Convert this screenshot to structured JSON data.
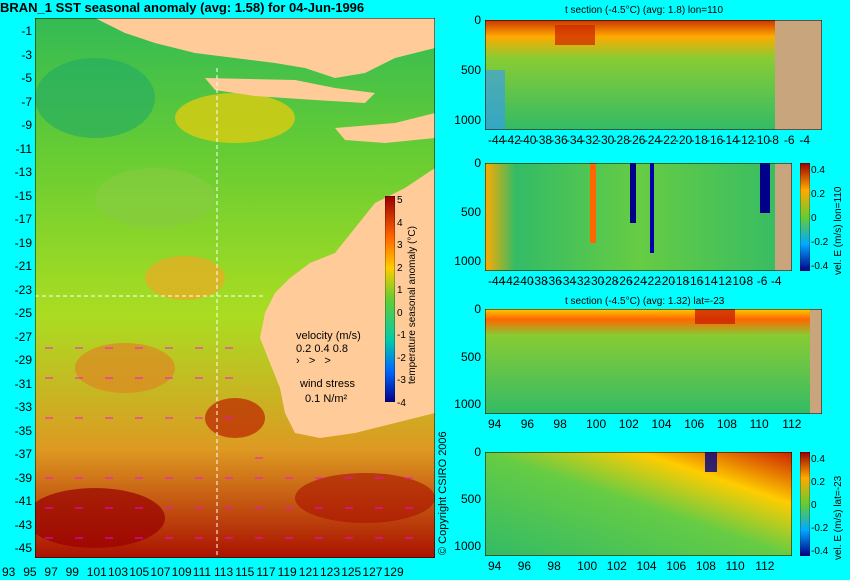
{
  "main_map": {
    "title": "BRAN_1 SST seasonal anomaly (avg: 1.58) for 04-Jun-1996",
    "y_ticks": [
      "-1",
      "-3",
      "-5",
      "-7",
      "-9",
      "-11",
      "-13",
      "-15",
      "-17",
      "-19",
      "-21",
      "-23",
      "-25",
      "-27",
      "-29",
      "-31",
      "-33",
      "-35",
      "-37",
      "-39",
      "-41",
      "-43",
      "-45"
    ],
    "x_ticks": [
      "93",
      "95",
      "97",
      "99",
      "101",
      "103",
      "105",
      "107",
      "109",
      "111",
      "113",
      "115",
      "117",
      "119",
      "121",
      "123",
      "125",
      "127",
      "129"
    ],
    "colorbar": {
      "ticks": [
        "5",
        "4",
        "3",
        "2",
        "1",
        "0",
        "-1",
        "-2",
        "-3",
        "-4"
      ],
      "label": "temperature seasonal anomaly (°C)"
    },
    "legend": {
      "velocity_label": "velocity (m/s)",
      "velocity_scale": "0.2 0.4 0.8",
      "wind_label": "wind stress",
      "wind_scale": "0.1 N/m²"
    },
    "copyright": "© Copyright CSIRO 2006"
  },
  "sections": [
    {
      "title": "t section (-4.5°C) (avg: 1.8) lon=110",
      "y_ticks": [
        "0",
        "500",
        "1000"
      ],
      "x_ticks": [
        "-44",
        "-42",
        "-40",
        "-38",
        "-36",
        "-34",
        "-32",
        "-30",
        "-28",
        "-26",
        "-24",
        "-22",
        "-20",
        "-18",
        "-16",
        "-14",
        "-12",
        "-10",
        "-8",
        "-6",
        "-4"
      ]
    },
    {
      "title": "",
      "y_ticks": [
        "0",
        "500",
        "1000"
      ],
      "x_ticks": [
        "-44",
        "-42",
        "-40",
        "-38",
        "-36",
        "-34",
        "-32",
        "-30",
        "-28",
        "-26",
        "-24",
        "-22",
        "-20",
        "-18",
        "-16",
        "-14",
        "-12",
        "-10",
        "-8",
        "-6",
        "-4"
      ],
      "colorbar_ticks": [
        "0.4",
        "0.2",
        "0",
        "-0.2",
        "-0.4"
      ],
      "colorbar_label": "vel. E (m/s) lon=110"
    },
    {
      "title": "t section (-4.5°C) (avg: 1.32) lat=-23",
      "y_ticks": [
        "0",
        "500",
        "1000"
      ],
      "x_ticks": [
        "94",
        "96",
        "98",
        "100",
        "102",
        "104",
        "106",
        "108",
        "110",
        "112"
      ]
    },
    {
      "title": "",
      "y_ticks": [
        "0",
        "500",
        "1000"
      ],
      "x_ticks": [
        "94",
        "96",
        "98",
        "100",
        "102",
        "104",
        "106",
        "108",
        "110",
        "112"
      ],
      "colorbar_ticks": [
        "0.4",
        "0.2",
        "0",
        "-0.2",
        "-0.4"
      ],
      "colorbar_label": "vel. E (m/s) lat=-23"
    }
  ],
  "colors": {
    "background": "#00ffff",
    "land": "#ffcc99",
    "section_land": "#c8a57c",
    "warm": "#cc2200",
    "cool": "#00aa44"
  }
}
